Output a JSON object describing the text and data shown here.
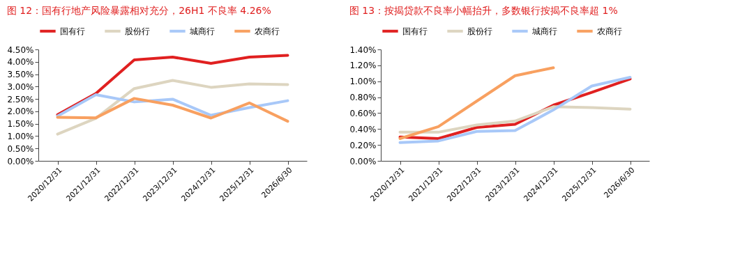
{
  "chart_data": [
    {
      "type": "line",
      "title": "图 12：国有行地产风险暴露相对充分，26H1 不良率 4.26%",
      "categories": [
        "2020/12/31",
        "2021/12/31",
        "2022/12/31",
        "2023/12/31",
        "2024/12/31",
        "2025/12/31",
        "2026/6/30"
      ],
      "series": [
        {
          "name": "国有行",
          "color": "#e02020",
          "values": [
            1.86,
            2.72,
            4.08,
            4.19,
            3.94,
            4.19,
            4.26
          ]
        },
        {
          "name": "股份行",
          "color": "#ddd5c0",
          "values": [
            1.08,
            1.72,
            2.92,
            3.25,
            2.97,
            3.11,
            3.08
          ]
        },
        {
          "name": "城商行",
          "color": "#a8c8f8",
          "values": [
            1.81,
            2.67,
            2.38,
            2.49,
            1.84,
            2.15,
            2.43
          ]
        },
        {
          "name": "农商行",
          "color": "#f8a060",
          "values": [
            1.76,
            1.74,
            2.52,
            2.25,
            1.73,
            2.34,
            1.6
          ]
        }
      ],
      "ylim": [
        0,
        4.5
      ],
      "yticks": [
        {
          "value": 0,
          "label": "0.00%"
        },
        {
          "value": 0.5,
          "label": "0.50%"
        },
        {
          "value": 1,
          "label": "1.00%"
        },
        {
          "value": 1.5,
          "label": "1.50%"
        },
        {
          "value": 2,
          "label": "2.00%"
        },
        {
          "value": 2.5,
          "label": "2.50%"
        },
        {
          "value": 3,
          "label": "3.00%"
        },
        {
          "value": 3.5,
          "label": "3.50%"
        },
        {
          "value": 4,
          "label": "4.00%"
        },
        {
          "value": 4.5,
          "label": "4.50%"
        }
      ],
      "grid": false,
      "legend": "top",
      "marker": "none",
      "line_style": "solid"
    },
    {
      "type": "line",
      "title": "图 13：按揭贷款不良率小幅抬升，多数银行按揭不良率超 1%",
      "categories": [
        "2020/12/31",
        "2021/12/31",
        "2022/12/31",
        "2023/12/31",
        "2024/12/31",
        "2025/12/31",
        "2026/6/30"
      ],
      "series": [
        {
          "name": "国有行",
          "color": "#e02020",
          "values": [
            0.3,
            0.28,
            0.42,
            0.46,
            0.7,
            0.86,
            1.03
          ]
        },
        {
          "name": "股份行",
          "color": "#ddd5c0",
          "values": [
            0.36,
            0.36,
            0.45,
            0.5,
            0.68,
            0.67,
            0.65
          ]
        },
        {
          "name": "城商行",
          "color": "#a8c8f8",
          "values": [
            0.23,
            0.25,
            0.37,
            0.38,
            0.64,
            0.94,
            1.05
          ]
        },
        {
          "name": "农商行",
          "color": "#f8a060",
          "values": [
            0.28,
            0.43,
            0.75,
            1.07,
            1.17,
            null,
            null
          ]
        }
      ],
      "ylim": [
        0,
        1.4
      ],
      "yticks": [
        {
          "value": 0,
          "label": "0.00%"
        },
        {
          "value": 0.2,
          "label": "0.20%"
        },
        {
          "value": 0.4,
          "label": "0.40%"
        },
        {
          "value": 0.6,
          "label": "0.60%"
        },
        {
          "value": 0.8,
          "label": "0.80%"
        },
        {
          "value": 1,
          "label": "1.00%"
        },
        {
          "value": 1.2,
          "label": "1.20%"
        },
        {
          "value": 1.4,
          "label": "1.40%"
        }
      ],
      "grid": false,
      "legend": "top",
      "marker": "none",
      "line_style": "solid"
    }
  ]
}
